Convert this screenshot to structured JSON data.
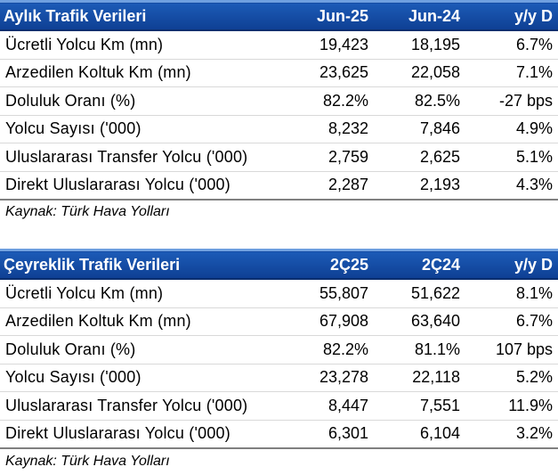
{
  "monthly": {
    "title": "Aylık Trafik Verileri",
    "col1": "Jun-25",
    "col2": "Jun-24",
    "col3": "y/y D",
    "rows": [
      {
        "label": "Ücretli Yolcu Km (mn)",
        "v1": "19,423",
        "v2": "18,195",
        "v3": "6.7%"
      },
      {
        "label": "Arzedilen Koltuk Km (mn)",
        "v1": "23,625",
        "v2": "22,058",
        "v3": "7.1%"
      },
      {
        "label": "Doluluk Oranı (%)",
        "v1": "82.2%",
        "v2": "82.5%",
        "v3": "-27 bps"
      },
      {
        "label": "Yolcu Sayısı ('000)",
        "v1": "8,232",
        "v2": "7,846",
        "v3": "4.9%"
      },
      {
        "label": "Uluslararası Transfer Yolcu ('000)",
        "v1": "2,759",
        "v2": "2,625",
        "v3": "5.1%"
      },
      {
        "label": "Direkt Uluslararası Yolcu ('000)",
        "v1": "2,287",
        "v2": "2,193",
        "v3": "4.3%"
      }
    ],
    "source": "Kaynak: Türk Hava Yolları"
  },
  "quarterly": {
    "title": "Çeyreklik Trafik Verileri",
    "col1": "2Ç25",
    "col2": "2Ç24",
    "col3": "y/y D",
    "rows": [
      {
        "label": "Ücretli Yolcu Km (mn)",
        "v1": "55,807",
        "v2": "51,622",
        "v3": "8.1%"
      },
      {
        "label": "Arzedilen Koltuk Km (mn)",
        "v1": "67,908",
        "v2": "63,640",
        "v3": "6.7%"
      },
      {
        "label": "Doluluk Oranı (%)",
        "v1": "82.2%",
        "v2": "81.1%",
        "v3": "107 bps"
      },
      {
        "label": "Yolcu Sayısı ('000)",
        "v1": "23,278",
        "v2": "22,118",
        "v3": "5.2%"
      },
      {
        "label": "Uluslararası Transfer Yolcu ('000)",
        "v1": "8,447",
        "v2": "7,551",
        "v3": "11.9%"
      },
      {
        "label": "Direkt Uluslararası Yolcu ('000)",
        "v1": "6,301",
        "v2": "6,104",
        "v3": "3.2%"
      }
    ],
    "source": "Kaynak: Türk Hava Yolları"
  }
}
